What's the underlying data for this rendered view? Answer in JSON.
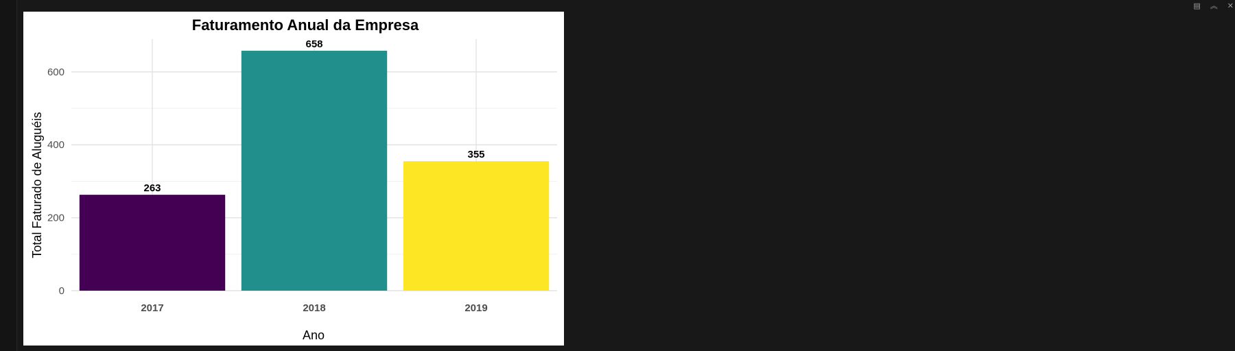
{
  "toolbar": {
    "icons": [
      "clear-console-icon",
      "collapse-panel-icon",
      "close-panel-icon"
    ],
    "glyphs": [
      "▤",
      "︽",
      "✕"
    ]
  },
  "chart_data": {
    "type": "bar",
    "title": "Faturamento Anual da Empresa",
    "xlabel": "Ano",
    "ylabel": "Total Faturado de Aluguéis",
    "categories": [
      "2017",
      "2018",
      "2019"
    ],
    "values": [
      263,
      658,
      355
    ],
    "data_labels": [
      "263",
      "658",
      "355"
    ],
    "colors": [
      "#440154",
      "#21908C",
      "#FDE725"
    ],
    "ylim": [
      0,
      690
    ],
    "yticks": [
      0,
      200,
      400,
      600
    ],
    "ytick_labels": [
      "0",
      "200",
      "400",
      "600"
    ],
    "grid": true,
    "legend": "none"
  }
}
